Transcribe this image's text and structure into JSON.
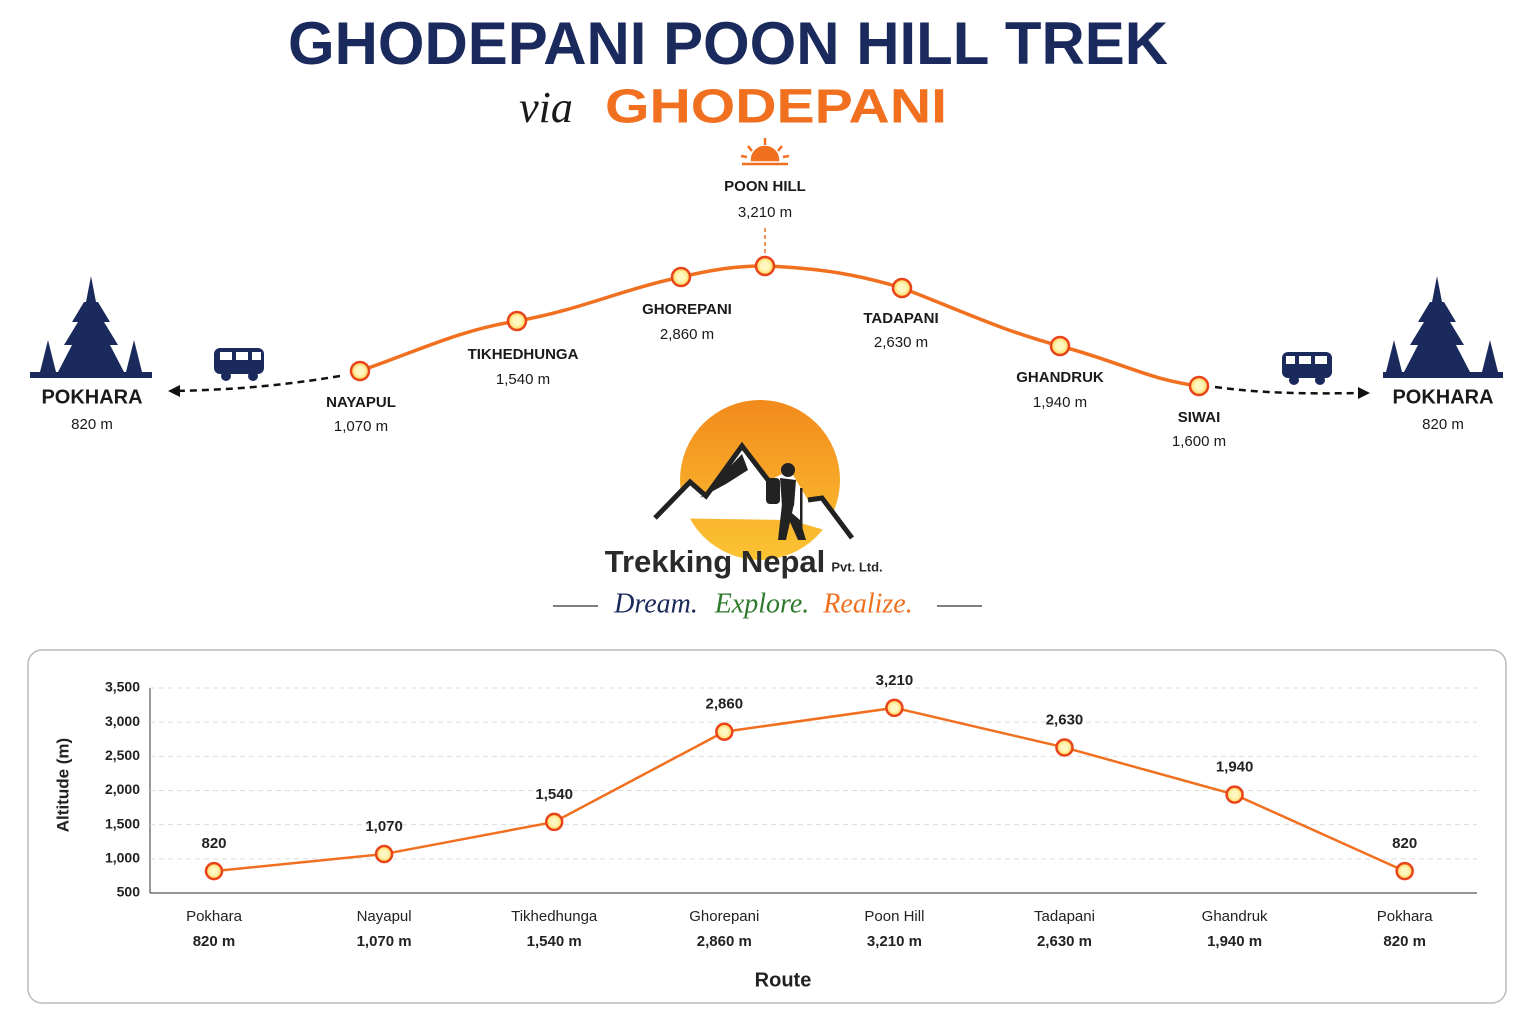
{
  "header": {
    "title": "GHODEPANI POON HILL TREK",
    "subtitle_prefix": "via",
    "subtitle": "GHODEPANI"
  },
  "route": {
    "stops": [
      {
        "name": "POKHARA",
        "altitude": "820 m"
      },
      {
        "name": "NAYAPUL",
        "altitude": "1,070 m"
      },
      {
        "name": "TIKHEDHUNGA",
        "altitude": "1,540 m"
      },
      {
        "name": "GHOREPANI",
        "altitude": "2,860 m"
      },
      {
        "name": "POON HILL",
        "altitude": "3,210 m"
      },
      {
        "name": "TADAPANI",
        "altitude": "2,630 m"
      },
      {
        "name": "GHANDRUK",
        "altitude": "1,940 m"
      },
      {
        "name": "SIWAI",
        "altitude": "1,600 m"
      },
      {
        "name": "POKHARA",
        "altitude": "820 m"
      }
    ]
  },
  "logo": {
    "name": "Trekking Nepal",
    "suffix": "Pvt. Ltd.",
    "tagline": [
      "Dream.",
      "Explore.",
      "Realize."
    ]
  },
  "chart_data": {
    "type": "line",
    "categories": [
      "Pokhara",
      "Nayapul",
      "Tikhedhunga",
      "Ghorepani",
      "Poon Hill",
      "Tadapani",
      "Ghandruk",
      "Pokhara"
    ],
    "category_sublabels": [
      "820 m",
      "1,070 m",
      "1,540 m",
      "2,860 m",
      "3,210 m",
      "2,630 m",
      "1,940 m",
      "820 m"
    ],
    "values": [
      820,
      1070,
      1540,
      2860,
      3210,
      2630,
      1940,
      820
    ],
    "value_labels": [
      "820",
      "1,070",
      "1,540",
      "2,860",
      "3,210",
      "2,630",
      "1,940",
      "820"
    ],
    "color": "#f07020",
    "ylim": [
      500,
      3500
    ],
    "yticks": [
      {
        "value": 500,
        "label": "500"
      },
      {
        "value": 1000,
        "label": "1,000"
      },
      {
        "value": 1500,
        "label": "1,500"
      },
      {
        "value": 2000,
        "label": "2,000"
      },
      {
        "value": 2500,
        "label": "2,500"
      },
      {
        "value": 3000,
        "label": "3,000"
      },
      {
        "value": 3500,
        "label": "3,500"
      }
    ],
    "ylabel": "Altitude (m)",
    "xlabel": "Route",
    "grid": true
  }
}
